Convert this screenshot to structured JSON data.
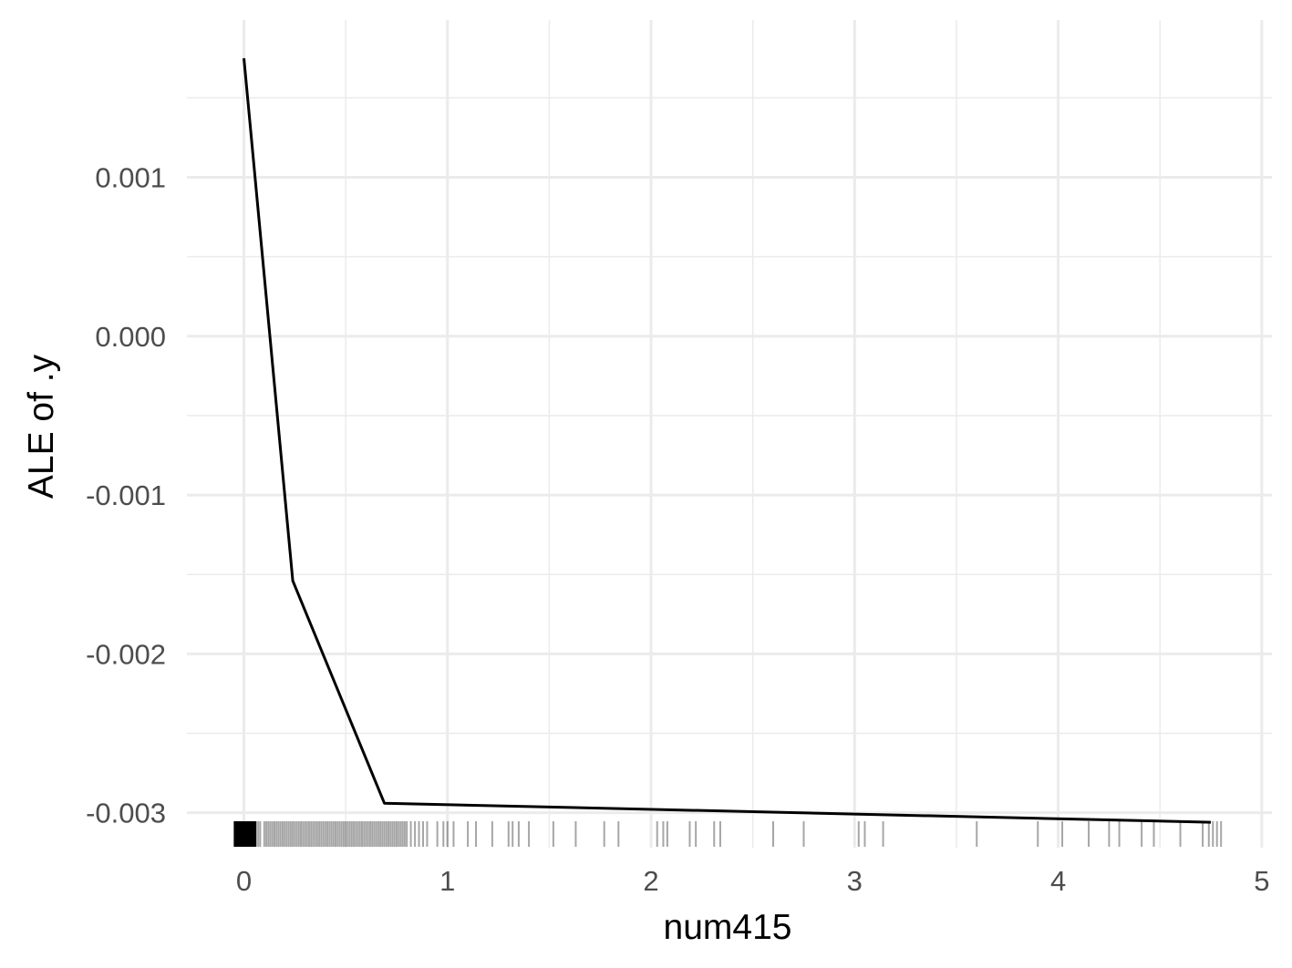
{
  "chart_data": {
    "type": "line",
    "title": "",
    "xlabel": "num415",
    "ylabel": "ALE of .y",
    "xlim": [
      -0.28,
      5.05
    ],
    "ylim": [
      -0.00322,
      0.00199
    ],
    "x_ticks": [
      0,
      1,
      2,
      3,
      4,
      5
    ],
    "x_tick_labels": [
      "0",
      "1",
      "2",
      "3",
      "4",
      "5"
    ],
    "y_ticks": [
      0.001,
      0.0,
      -0.001,
      -0.002,
      -0.003
    ],
    "y_tick_labels": [
      "0.001",
      "0.000",
      "-0.001",
      "-0.002",
      "-0.003"
    ],
    "grid": true,
    "series": [
      {
        "x": [
          0.0,
          0.24,
          0.69,
          4.75
        ],
        "y": [
          0.00175,
          -0.00154,
          -0.00294,
          -0.00306
        ],
        "color": "#000000"
      }
    ],
    "rug": {
      "color": "#000000",
      "x": [
        0.0,
        0.01,
        0.02,
        0.03,
        0.04,
        0.05,
        0.06,
        0.07,
        0.08,
        0.1,
        0.11,
        0.12,
        0.13,
        0.14,
        0.15,
        0.16,
        0.17,
        0.18,
        0.19,
        0.2,
        0.21,
        0.22,
        0.23,
        0.24,
        0.25,
        0.26,
        0.27,
        0.28,
        0.29,
        0.3,
        0.31,
        0.32,
        0.33,
        0.34,
        0.35,
        0.36,
        0.37,
        0.38,
        0.39,
        0.4,
        0.41,
        0.42,
        0.43,
        0.44,
        0.45,
        0.46,
        0.47,
        0.48,
        0.49,
        0.5,
        0.51,
        0.52,
        0.53,
        0.54,
        0.55,
        0.56,
        0.57,
        0.58,
        0.59,
        0.6,
        0.61,
        0.62,
        0.63,
        0.64,
        0.65,
        0.66,
        0.67,
        0.68,
        0.69,
        0.7,
        0.71,
        0.72,
        0.73,
        0.74,
        0.75,
        0.76,
        0.77,
        0.78,
        0.79,
        0.8,
        0.82,
        0.84,
        0.86,
        0.88,
        0.9,
        0.95,
        0.98,
        1.0,
        1.03,
        1.1,
        1.14,
        1.22,
        1.3,
        1.32,
        1.35,
        1.4,
        1.52,
        1.63,
        1.77,
        1.84,
        2.03,
        2.06,
        2.08,
        2.19,
        2.22,
        2.31,
        2.34,
        2.6,
        2.75,
        3.02,
        3.05,
        3.14,
        3.6,
        3.9,
        4.02,
        4.15,
        4.25,
        4.3,
        4.41,
        4.47,
        4.6,
        4.71,
        4.74,
        4.76,
        4.78,
        4.8
      ]
    }
  }
}
